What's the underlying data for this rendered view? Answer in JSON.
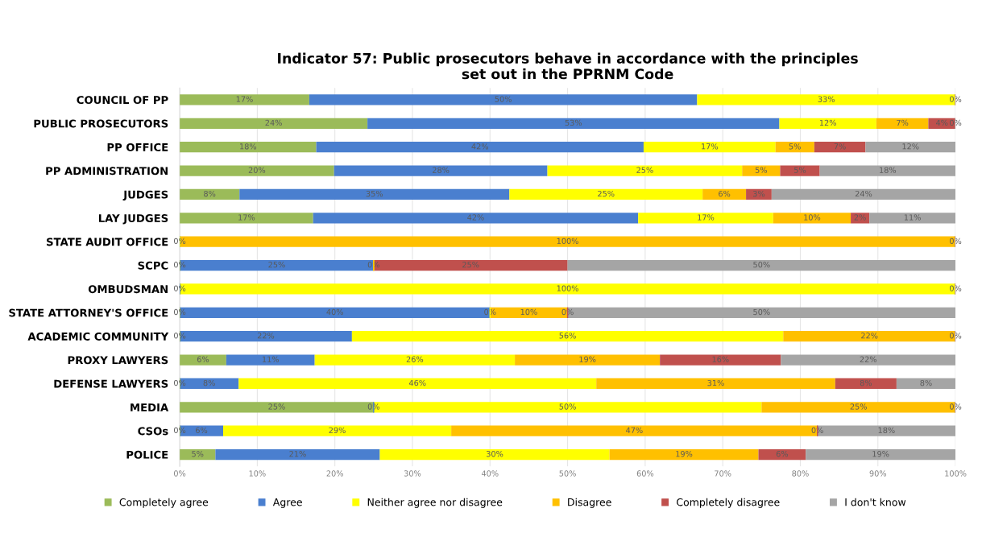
{
  "chart_data": {
    "type": "bar",
    "orientation": "horizontal",
    "stacked": true,
    "title": "Indicator 57: Public prosecutors behave in accordance with the principles\nset out in the PPRNM Code",
    "categories": [
      "COUNCIL OF PP",
      "PUBLIC PROSECUTORS",
      "PP OFFICE",
      "PP ADMINISTRATION",
      "JUDGES",
      "LAY JUDGES",
      "STATE AUDIT OFFICE",
      "SCPC",
      "OMBUDSMAN",
      "STATE ATTORNEY'S OFFICE",
      "ACADEMIC COMMUNITY",
      "PROXY LAWYERS",
      "DEFENSE LAWYERS",
      "MEDIA",
      "CSOs",
      "POLICE"
    ],
    "xlim": [
      0,
      100
    ],
    "xticks": [
      {
        "value": 0,
        "label": "0%"
      },
      {
        "value": 10,
        "label": "10%"
      },
      {
        "value": 20,
        "label": "20%"
      },
      {
        "value": 30,
        "label": "30%"
      },
      {
        "value": 40,
        "label": "40%"
      },
      {
        "value": 50,
        "label": "50%"
      },
      {
        "value": 60,
        "label": "60%"
      },
      {
        "value": 70,
        "label": "70%"
      },
      {
        "value": 80,
        "label": "80%"
      },
      {
        "value": 90,
        "label": "90%"
      },
      {
        "value": 100,
        "label": "100%"
      }
    ],
    "grid": "x",
    "legend": "bottom",
    "series": [
      {
        "name": "Completely agree",
        "color": "#9bbb59",
        "values": [
          16.7,
          24.2,
          17.6,
          19.9,
          7.7,
          17.2,
          0,
          0,
          0,
          0,
          0,
          6,
          0,
          25,
          0,
          4.6
        ],
        "value_labels": [
          "17%",
          "24%",
          "18%",
          "20%",
          "8%",
          "17%",
          "0%",
          "0%",
          "0%",
          "0%",
          "0%",
          "6%",
          "0%",
          "25%",
          "0%",
          "5%"
        ]
      },
      {
        "name": "Agree",
        "color": "#4a7fcf",
        "values": [
          50,
          53.1,
          42.2,
          27.5,
          34.8,
          41.9,
          0,
          25,
          0,
          40,
          22.2,
          11.4,
          7.6,
          0,
          5.6,
          21.2
        ],
        "value_labels": [
          "50%",
          "53%",
          "42%",
          "28%",
          "35%",
          "42%",
          null,
          "25%",
          null,
          "40%",
          "22%",
          "11%",
          "8%",
          "0%",
          "6%",
          "21%"
        ]
      },
      {
        "name": "Neither agree nor disagree",
        "color": "#ffff00",
        "values": [
          33.3,
          12.5,
          17.0,
          25.1,
          24.9,
          17.4,
          0,
          0,
          100,
          0,
          55.6,
          25.8,
          46.1,
          50,
          29.4,
          29.6
        ],
        "value_labels": [
          "33%",
          "12%",
          "17%",
          "25%",
          "25%",
          "17%",
          null,
          "0%",
          "100%",
          "0%",
          "56%",
          "26%",
          "46%",
          "50%",
          "29%",
          "30%"
        ]
      },
      {
        "name": "Disagree",
        "color": "#ffc000",
        "values": [
          0,
          6.7,
          5.0,
          4.9,
          5.6,
          10.0,
          100,
          0,
          0,
          10,
          22.2,
          18.7,
          30.8,
          25,
          47.2,
          19.2
        ],
        "value_labels": [
          null,
          "7%",
          "5%",
          "5%",
          "6%",
          "10%",
          "100%",
          null,
          null,
          "10%",
          "22%",
          "19%",
          "31%",
          "25%",
          "47%",
          "19%"
        ]
      },
      {
        "name": "Completely disagree",
        "color": "#c0504d",
        "values": [
          0,
          3.5,
          6.6,
          5.1,
          3.3,
          2.4,
          0,
          25,
          0,
          0,
          0,
          15.6,
          7.9,
          0,
          0,
          6.1
        ],
        "value_labels": [
          null,
          "4%",
          "7%",
          "5%",
          "3%",
          "2%",
          null,
          "25%",
          null,
          "0%",
          null,
          "16%",
          "8%",
          null,
          "0%",
          "6%"
        ]
      },
      {
        "name": "I don't know",
        "color": "#a5a5a5",
        "values": [
          0,
          0,
          11.6,
          17.5,
          23.7,
          11.1,
          0,
          50,
          0,
          50,
          0,
          22.5,
          7.6,
          0,
          17.8,
          19.3
        ],
        "value_labels": [
          "0%",
          "0%",
          "12%",
          "18%",
          "24%",
          "11%",
          "0%",
          "50%",
          "0%",
          "50%",
          "0%",
          "22%",
          "8%",
          "0%",
          "18%",
          "19%"
        ]
      }
    ]
  }
}
